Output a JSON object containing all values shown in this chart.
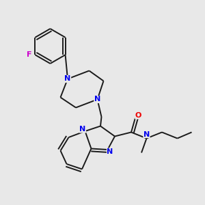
{
  "bg_color": "#e8e8e8",
  "bond_color": "#1a1a1a",
  "N_color": "#0000ee",
  "O_color": "#ee0000",
  "F_color": "#cc00cc",
  "line_width": 1.4,
  "figsize": [
    3.0,
    3.0
  ],
  "dpi": 100,
  "xlim": [
    0,
    10
  ],
  "ylim": [
    0,
    10
  ]
}
